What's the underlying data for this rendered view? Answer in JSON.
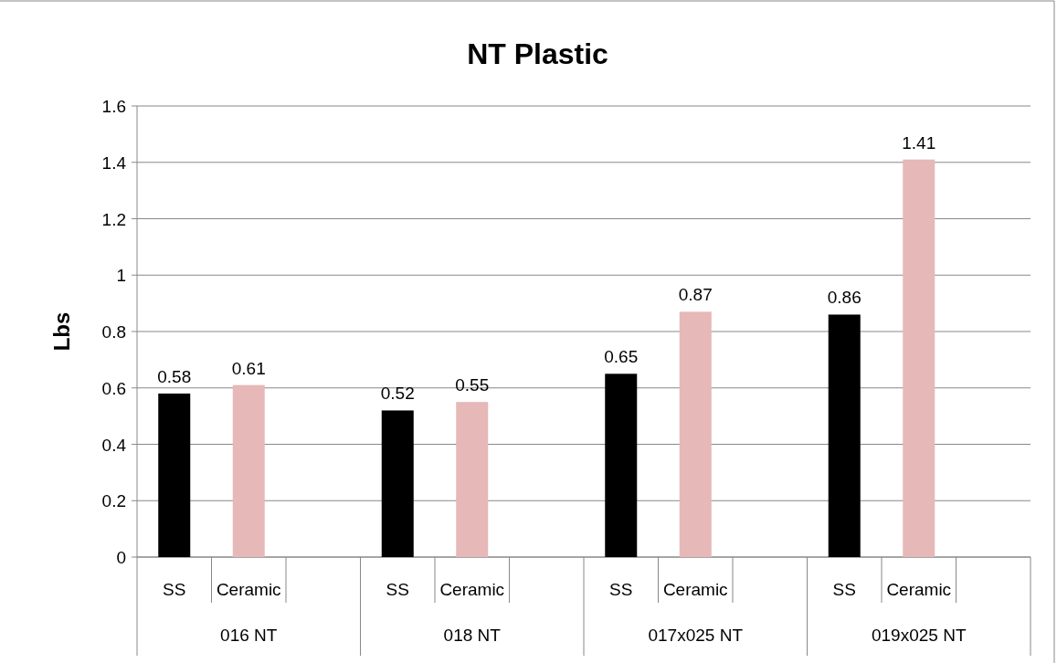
{
  "chart_data": {
    "type": "bar",
    "title": "NT Plastic",
    "ylabel": "Lbs",
    "categories": [
      "SS",
      "Ceramic",
      null,
      "SS",
      "Ceramic",
      null,
      "SS",
      "Ceramic",
      null,
      "SS",
      "Ceramic",
      null
    ],
    "values": [
      0.58,
      0.61,
      null,
      0.52,
      0.55,
      null,
      0.65,
      0.87,
      null,
      0.86,
      1.41,
      null
    ],
    "colors": [
      "#000000",
      "#e6b8b7",
      null,
      "#000000",
      "#e6b8b7",
      null,
      "#000000",
      "#e6b8b7",
      null,
      "#000000",
      "#e6b8b7",
      null
    ],
    "annotations": [
      "016 NT",
      "018 NT",
      "017x025 NT",
      "019x025 NT"
    ],
    "ylim": [
      0,
      1.6
    ],
    "yticks": [
      0,
      0.2,
      0.4,
      0.6,
      0.8,
      1,
      1.2,
      1.4,
      1.6
    ],
    "grid": "y",
    "data_labels": true
  }
}
